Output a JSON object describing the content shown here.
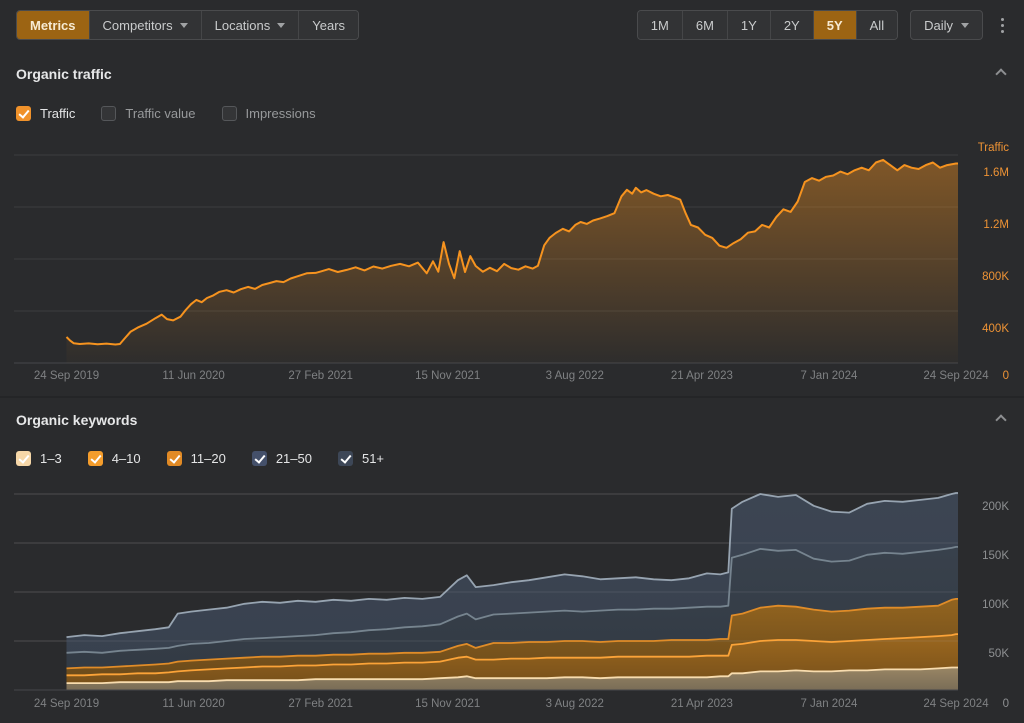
{
  "toolbar": {
    "active_bg": "#9c6413",
    "left_tabs": [
      {
        "label": "Metrics",
        "active": true,
        "caret": false
      },
      {
        "label": "Competitors",
        "active": false,
        "caret": true
      },
      {
        "label": "Locations",
        "active": false,
        "caret": true
      },
      {
        "label": "Years",
        "active": false,
        "caret": false
      }
    ],
    "range_tabs": [
      {
        "label": "1M",
        "active": false
      },
      {
        "label": "6M",
        "active": false
      },
      {
        "label": "1Y",
        "active": false
      },
      {
        "label": "2Y",
        "active": false
      },
      {
        "label": "5Y",
        "active": true
      },
      {
        "label": "All",
        "active": false
      }
    ],
    "interval": {
      "label": "Daily"
    }
  },
  "icons": {
    "caret_down": "▾",
    "more_vertical": "⋮",
    "chevron_up": "⌃",
    "checkmark": "✓"
  },
  "sections": [
    {
      "title": "Organic traffic",
      "checkboxes": [
        {
          "label": "Traffic",
          "checked": true,
          "color": "#f0922b"
        },
        {
          "label": "Traffic value",
          "checked": false,
          "color": ""
        },
        {
          "label": "Impressions",
          "checked": false,
          "color": ""
        }
      ]
    },
    {
      "title": "Organic keywords",
      "checkboxes": [
        {
          "label": "1–3",
          "checked": true,
          "color": "#f6d7a8"
        },
        {
          "label": "4–10",
          "checked": true,
          "color": "#f49d2c"
        },
        {
          "label": "11–20",
          "checked": true,
          "color": "#e18a25"
        },
        {
          "label": "21–50",
          "checked": true,
          "color": "#44506a"
        },
        {
          "label": "51+",
          "checked": true,
          "color": "#3d4757"
        }
      ]
    }
  ],
  "chart_data": [
    {
      "type": "area",
      "title": "Organic traffic",
      "axis_title": "Traffic",
      "units": "thousands",
      "label_color": "#ee9335",
      "line_color": "#f6931f",
      "tick_color": "#7f8183",
      "ylim": [
        0,
        1750
      ],
      "y_zero_label": "0",
      "y_ticks": [
        {
          "value": 400,
          "label": "400K"
        },
        {
          "value": 800,
          "label": "800K"
        },
        {
          "value": 1200,
          "label": "1.2M"
        },
        {
          "value": 1600,
          "label": "1.6M"
        }
      ],
      "x_ticks": [
        "24 Sep 2019",
        "11 Jun 2020",
        "27 Feb 2021",
        "15 Nov 2021",
        "3 Aug 2022",
        "21 Apr 2023",
        "7 Jan 2024",
        "24 Sep 2024"
      ],
      "series": [
        {
          "name": "Traffic",
          "points": [
            [
              0,
              200
            ],
            [
              0.004,
              172
            ],
            [
              0.008,
              152
            ],
            [
              0.015,
              146
            ],
            [
              0.025,
              151
            ],
            [
              0.035,
              144
            ],
            [
              0.045,
              149
            ],
            [
              0.055,
              142
            ],
            [
              0.06,
              146
            ],
            [
              0.065,
              185
            ],
            [
              0.072,
              240
            ],
            [
              0.08,
              272
            ],
            [
              0.09,
              302
            ],
            [
              0.1,
              345
            ],
            [
              0.107,
              372
            ],
            [
              0.113,
              338
            ],
            [
              0.12,
              328
            ],
            [
              0.128,
              356
            ],
            [
              0.134,
              408
            ],
            [
              0.14,
              452
            ],
            [
              0.146,
              485
            ],
            [
              0.152,
              468
            ],
            [
              0.158,
              500
            ],
            [
              0.165,
              520
            ],
            [
              0.172,
              548
            ],
            [
              0.18,
              560
            ],
            [
              0.188,
              542
            ],
            [
              0.196,
              568
            ],
            [
              0.204,
              585
            ],
            [
              0.212,
              570
            ],
            [
              0.22,
              600
            ],
            [
              0.228,
              615
            ],
            [
              0.236,
              630
            ],
            [
              0.244,
              622
            ],
            [
              0.252,
              650
            ],
            [
              0.26,
              668
            ],
            [
              0.27,
              690
            ],
            [
              0.28,
              693
            ],
            [
              0.286,
              705
            ],
            [
              0.295,
              722
            ],
            [
              0.305,
              700
            ],
            [
              0.315,
              716
            ],
            [
              0.325,
              736
            ],
            [
              0.335,
              712
            ],
            [
              0.345,
              742
            ],
            [
              0.355,
              726
            ],
            [
              0.365,
              748
            ],
            [
              0.375,
              762
            ],
            [
              0.385,
              744
            ],
            [
              0.395,
              772
            ],
            [
              0.405,
              690
            ],
            [
              0.412,
              782
            ],
            [
              0.418,
              702
            ],
            [
              0.424,
              930
            ],
            [
              0.43,
              762
            ],
            [
              0.436,
              652
            ],
            [
              0.442,
              860
            ],
            [
              0.448,
              700
            ],
            [
              0.454,
              822
            ],
            [
              0.46,
              746
            ],
            [
              0.468,
              702
            ],
            [
              0.476,
              732
            ],
            [
              0.484,
              706
            ],
            [
              0.492,
              762
            ],
            [
              0.5,
              730
            ],
            [
              0.508,
              718
            ],
            [
              0.516,
              744
            ],
            [
              0.524,
              726
            ],
            [
              0.53,
              748
            ],
            [
              0.537,
              905
            ],
            [
              0.543,
              962
            ],
            [
              0.55,
              1000
            ],
            [
              0.558,
              1032
            ],
            [
              0.565,
              1012
            ],
            [
              0.572,
              1062
            ],
            [
              0.578,
              1085
            ],
            [
              0.585,
              1070
            ],
            [
              0.592,
              1096
            ],
            [
              0.6,
              1112
            ],
            [
              0.608,
              1130
            ],
            [
              0.616,
              1152
            ],
            [
              0.624,
              1282
            ],
            [
              0.63,
              1332
            ],
            [
              0.636,
              1302
            ],
            [
              0.64,
              1348
            ],
            [
              0.646,
              1312
            ],
            [
              0.652,
              1330
            ],
            [
              0.66,
              1302
            ],
            [
              0.668,
              1282
            ],
            [
              0.676,
              1292
            ],
            [
              0.684,
              1272
            ],
            [
              0.69,
              1256
            ],
            [
              0.696,
              1152
            ],
            [
              0.702,
              1062
            ],
            [
              0.71,
              1042
            ],
            [
              0.718,
              986
            ],
            [
              0.726,
              962
            ],
            [
              0.734,
              902
            ],
            [
              0.742,
              886
            ],
            [
              0.75,
              922
            ],
            [
              0.758,
              952
            ],
            [
              0.766,
              1002
            ],
            [
              0.774,
              1012
            ],
            [
              0.782,
              1062
            ],
            [
              0.79,
              1042
            ],
            [
              0.798,
              1122
            ],
            [
              0.806,
              1182
            ],
            [
              0.814,
              1162
            ],
            [
              0.822,
              1242
            ],
            [
              0.83,
              1392
            ],
            [
              0.838,
              1422
            ],
            [
              0.846,
              1402
            ],
            [
              0.854,
              1432
            ],
            [
              0.862,
              1442
            ],
            [
              0.87,
              1472
            ],
            [
              0.878,
              1452
            ],
            [
              0.886,
              1482
            ],
            [
              0.894,
              1502
            ],
            [
              0.902,
              1482
            ],
            [
              0.91,
              1542
            ],
            [
              0.918,
              1562
            ],
            [
              0.926,
              1522
            ],
            [
              0.934,
              1482
            ],
            [
              0.942,
              1522
            ],
            [
              0.95,
              1502
            ],
            [
              0.958,
              1492
            ],
            [
              0.966,
              1522
            ],
            [
              0.974,
              1542
            ],
            [
              0.982,
              1502
            ],
            [
              0.99,
              1522
            ],
            [
              1,
              1535
            ]
          ]
        }
      ]
    },
    {
      "type": "stacked_area",
      "title": "Organic keywords",
      "units": "thousands",
      "label_color": "#8e9092",
      "tick_color": "#7f8183",
      "ylim": [
        0,
        215
      ],
      "y_zero_label": "0",
      "y_ticks": [
        {
          "value": 50,
          "label": "50K"
        },
        {
          "value": 100,
          "label": "100K"
        },
        {
          "value": 150,
          "label": "150K"
        },
        {
          "value": 200,
          "label": "200K"
        }
      ],
      "x_ticks": [
        "24 Sep 2019",
        "11 Jun 2020",
        "27 Feb 2021",
        "15 Nov 2021",
        "3 Aug 2022",
        "21 Apr 2023",
        "7 Jan 2024",
        "24 Sep 2024"
      ],
      "x": [
        0,
        0.02,
        0.04,
        0.06,
        0.08,
        0.1,
        0.115,
        0.125,
        0.14,
        0.16,
        0.18,
        0.2,
        0.22,
        0.24,
        0.26,
        0.28,
        0.3,
        0.32,
        0.34,
        0.36,
        0.38,
        0.4,
        0.42,
        0.44,
        0.45,
        0.46,
        0.48,
        0.5,
        0.52,
        0.54,
        0.56,
        0.58,
        0.6,
        0.62,
        0.64,
        0.66,
        0.68,
        0.7,
        0.72,
        0.735,
        0.744,
        0.748,
        0.76,
        0.78,
        0.8,
        0.82,
        0.84,
        0.86,
        0.88,
        0.9,
        0.92,
        0.94,
        0.96,
        0.98,
        0.995,
        1.0
      ],
      "series": [
        {
          "name": "1–3",
          "line": "#f8dcae",
          "fill": [
            "#9c8866",
            "#7c6f58"
          ],
          "cum": [
            7,
            7,
            7,
            8,
            8,
            8,
            8,
            9,
            9,
            9,
            10,
            10,
            10,
            10,
            10,
            11,
            11,
            11,
            11,
            11,
            11,
            11,
            12,
            13,
            14,
            12,
            12,
            12,
            12,
            12,
            13,
            13,
            12,
            13,
            13,
            13,
            13,
            13,
            13,
            14,
            14,
            17,
            17,
            19,
            19,
            20,
            19,
            19,
            20,
            20,
            21,
            21,
            21,
            22,
            23,
            23
          ]
        },
        {
          "name": "4–10",
          "line": "#fba338",
          "fill": [
            "#a06a1e",
            "#7b521a"
          ],
          "cum": [
            15,
            15,
            16,
            16,
            17,
            17,
            18,
            19,
            20,
            21,
            22,
            23,
            24,
            24,
            25,
            25,
            26,
            26,
            27,
            27,
            28,
            28,
            29,
            33,
            34,
            31,
            31,
            32,
            32,
            33,
            33,
            33,
            33,
            34,
            34,
            34,
            34,
            34,
            35,
            35,
            35,
            46,
            47,
            50,
            51,
            51,
            50,
            49,
            50,
            51,
            52,
            53,
            54,
            55,
            56,
            57
          ]
        },
        {
          "name": "11–20",
          "line": "#e08c28",
          "fill": [
            "#96661f",
            "#6e4c1a"
          ],
          "cum": [
            22,
            23,
            23,
            24,
            25,
            26,
            27,
            29,
            30,
            31,
            32,
            33,
            34,
            34,
            35,
            35,
            36,
            36,
            37,
            37,
            38,
            38,
            39,
            45,
            47,
            43,
            48,
            48,
            49,
            49,
            50,
            50,
            49,
            50,
            50,
            50,
            51,
            51,
            51,
            52,
            52,
            76,
            78,
            84,
            86,
            85,
            82,
            80,
            81,
            83,
            84,
            84,
            85,
            86,
            92,
            93
          ]
        },
        {
          "name": "21–50",
          "line": "#76848f",
          "fill": [
            "#39424d",
            "#333b45"
          ],
          "cum": [
            38,
            39,
            38,
            40,
            41,
            42,
            43,
            45,
            47,
            48,
            50,
            52,
            53,
            54,
            55,
            56,
            58,
            59,
            61,
            62,
            64,
            65,
            67,
            75,
            78,
            72,
            77,
            78,
            79,
            80,
            81,
            80,
            81,
            82,
            82,
            83,
            83,
            84,
            85,
            85,
            86,
            135,
            138,
            144,
            142,
            143,
            134,
            131,
            132,
            138,
            140,
            139,
            141,
            143,
            145,
            146
          ]
        },
        {
          "name": "51+",
          "line": "#97a4b1",
          "fill": [
            "#3d4654",
            "#394250"
          ],
          "cum": [
            54,
            56,
            55,
            58,
            60,
            62,
            64,
            78,
            80,
            82,
            84,
            88,
            90,
            89,
            91,
            90,
            92,
            91,
            93,
            92,
            94,
            93,
            95,
            112,
            117,
            105,
            107,
            110,
            112,
            115,
            118,
            116,
            113,
            114,
            115,
            113,
            112,
            114,
            119,
            118,
            120,
            185,
            192,
            200,
            197,
            199,
            188,
            182,
            181,
            190,
            193,
            192,
            194,
            196,
            200,
            201
          ]
        }
      ]
    }
  ]
}
